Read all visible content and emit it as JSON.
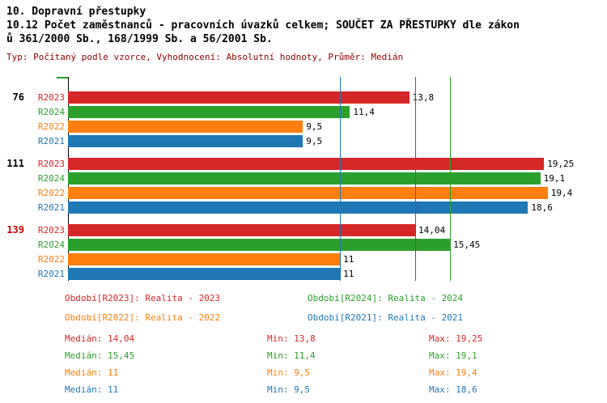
{
  "header": {
    "title": "10. Dopravní přestupky",
    "subtitle_line1": "10.12 Počet zaměstnanců - pracovních úvazků celkem; SOUČET ZA PŘESTUPKY dle zákon",
    "subtitle_line2": "ů 361/2000 Sb., 168/1999 Sb. a 56/2001 Sb.",
    "meta": "Typ: Počítaný podle vzorce, Vyhodnocení: Absolutní hodnoty, Průměr: Medián",
    "meta_color": "#8b0000"
  },
  "chart_data": {
    "type": "bar",
    "orientation": "horizontal",
    "xlim": [
      0,
      19.8
    ],
    "xmax": 19.8,
    "series_order": [
      "R2023",
      "R2024",
      "R2022",
      "R2021"
    ],
    "series_colors": {
      "R2023": "#d62728",
      "R2024": "#2ca02c",
      "R2022": "#ff7f0e",
      "R2021": "#1f77b4"
    },
    "groups": [
      {
        "id": "76",
        "id_color": "#000000",
        "bars": [
          {
            "series": "R2023",
            "value": 13.8,
            "label": "13,8"
          },
          {
            "series": "R2024",
            "value": 11.4,
            "label": "11,4"
          },
          {
            "series": "R2022",
            "value": 9.5,
            "label": "9,5"
          },
          {
            "series": "R2021",
            "value": 9.5,
            "label": "9,5"
          }
        ]
      },
      {
        "id": "111",
        "id_color": "#000000",
        "bars": [
          {
            "series": "R2023",
            "value": 19.25,
            "label": "19,25"
          },
          {
            "series": "R2024",
            "value": 19.1,
            "label": "19,1"
          },
          {
            "series": "R2022",
            "value": 19.4,
            "label": "19,4"
          },
          {
            "series": "R2021",
            "value": 18.6,
            "label": "18,6"
          }
        ]
      },
      {
        "id": "139",
        "id_color": "#cc0000",
        "bars": [
          {
            "series": "R2023",
            "value": 14.04,
            "label": "14,04"
          },
          {
            "series": "R2024",
            "value": 15.45,
            "label": "15,45"
          },
          {
            "series": "R2022",
            "value": 11,
            "label": "11"
          },
          {
            "series": "R2021",
            "value": 11,
            "label": "11"
          }
        ]
      }
    ],
    "median_lines": [
      {
        "series": "R2022",
        "value": 11,
        "color": "#ff7f0e"
      },
      {
        "series": "R2021",
        "value": 11,
        "color": "#1f77b4"
      },
      {
        "series": "R2023",
        "value": 14.04,
        "color": "#d62728"
      },
      {
        "series": "R2024",
        "value": 15.45,
        "color": "#2ca02c"
      }
    ]
  },
  "legend": {
    "items": [
      {
        "label": "Období[R2023]: Realita - 2023",
        "color": "#d62728"
      },
      {
        "label": "Období[R2024]: Realita - 2024",
        "color": "#2ca02c"
      },
      {
        "label": "Období[R2022]: Realita - 2022",
        "color": "#ff7f0e"
      },
      {
        "label": "Období[R2021]: Realita - 2021",
        "color": "#1f77b4"
      }
    ]
  },
  "stats": {
    "rows": [
      {
        "median": "Medián: 14,04",
        "min": "Min: 13,8",
        "max": "Max: 19,25",
        "color": "#d62728"
      },
      {
        "median": "Medián: 15,45",
        "min": "Min: 11,4",
        "max": "Max: 19,1",
        "color": "#2ca02c"
      },
      {
        "median": "Medián: 11",
        "min": "Min: 9,5",
        "max": "Max: 19,4",
        "color": "#ff7f0e"
      },
      {
        "median": "Medián: 11",
        "min": "Min: 9,5",
        "max": "Max: 18,6",
        "color": "#1f77b4"
      }
    ]
  }
}
